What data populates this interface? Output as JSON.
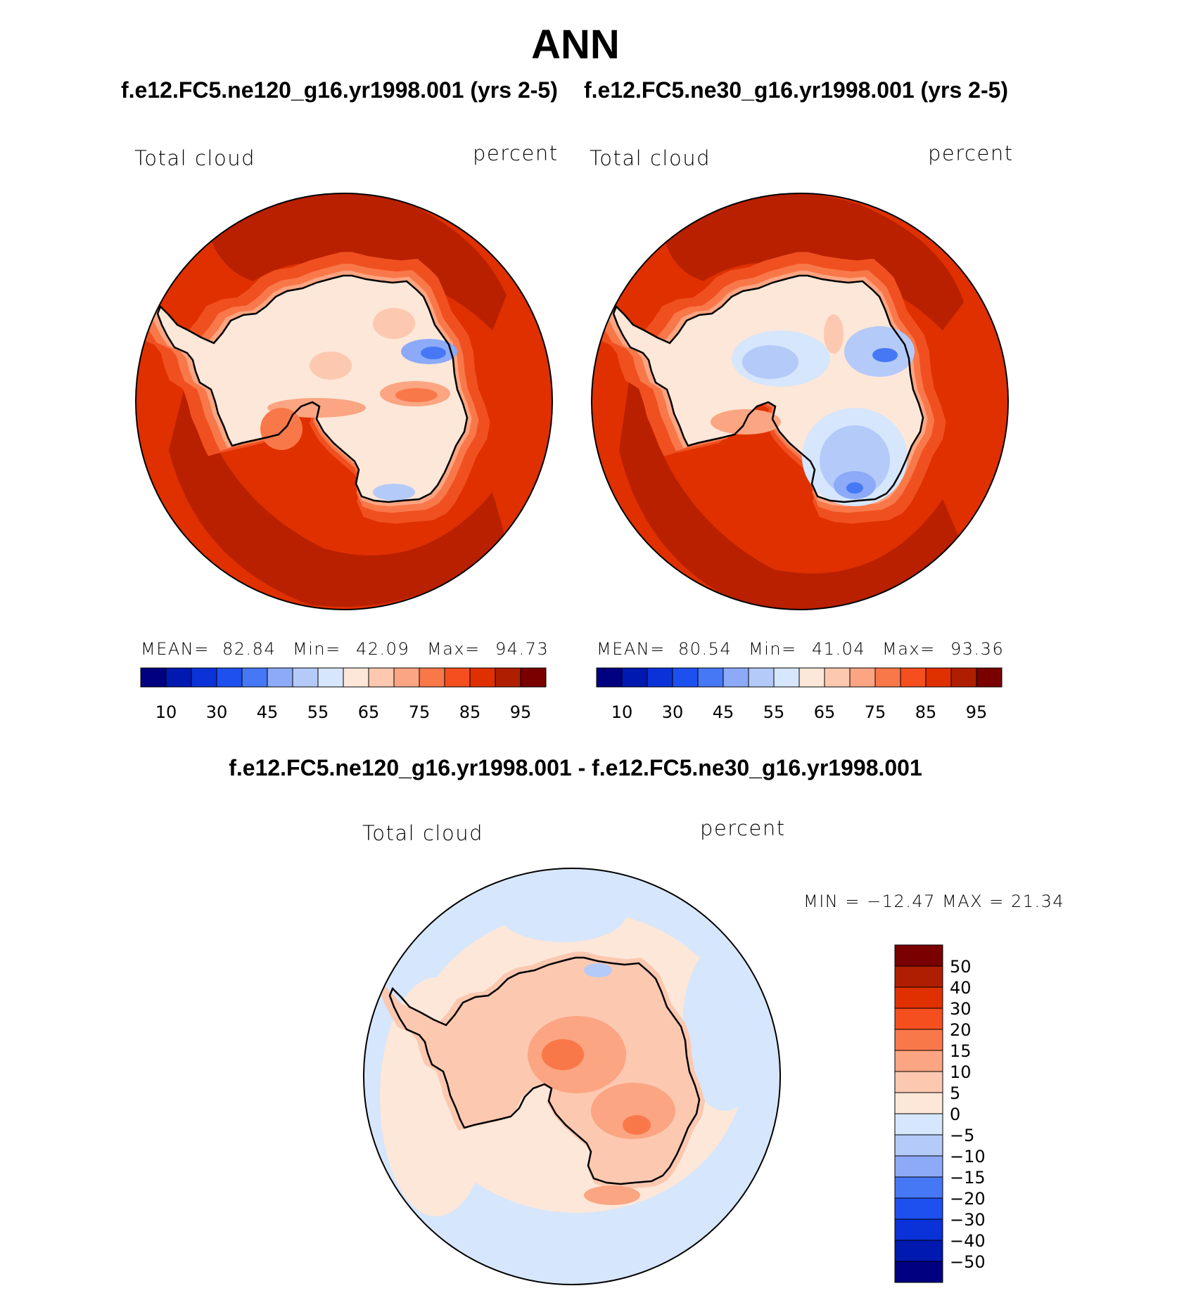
{
  "title": "ANN",
  "panels": {
    "left": {
      "case": "f.e12.FC5.ne120_g16.yr1998.001 (yrs 2-5)",
      "variable": "Total cloud",
      "units": "percent",
      "stats": {
        "mean_label": "MEAN=",
        "mean": "82.84",
        "min_label": "Min=",
        "min": "42.09",
        "max_label": "Max=",
        "max": "94.73"
      }
    },
    "right": {
      "case": "f.e12.FC5.ne30_g16.yr1998.001 (yrs 2-5)",
      "variable": "Total cloud",
      "units": "percent",
      "stats": {
        "mean_label": "MEAN=",
        "mean": "80.54",
        "min_label": "Min=",
        "min": "41.04",
        "max_label": "Max=",
        "max": "93.36"
      }
    },
    "diff": {
      "case": "f.e12.FC5.ne120_g16.yr1998.001 - f.e12.FC5.ne30_g16.yr1998.001",
      "variable": "Total cloud",
      "units": "percent",
      "min_max_text": "MIN = −12.47 MAX =   21.34"
    }
  },
  "colors": {
    "abs_scale": [
      "#000080",
      "#0019b0",
      "#0a32d8",
      "#1e50f0",
      "#4678f5",
      "#8caaf7",
      "#b4caf9",
      "#d6e6fc",
      "#fde7d8",
      "#fcc8b0",
      "#fba582",
      "#f9784a",
      "#f54e1f",
      "#e03000",
      "#b01e00",
      "#7a0000"
    ],
    "diff_scale": [
      "#000080",
      "#0019b0",
      "#0a32d8",
      "#1e50f0",
      "#4678f5",
      "#8caaf7",
      "#b4caf9",
      "#d6e6fc",
      "#fde7d8",
      "#fcc8b0",
      "#fba582",
      "#f9784a",
      "#f54e1f",
      "#e03000",
      "#b01e00",
      "#7a0000"
    ],
    "ocean_dark": "#b82000",
    "ocean_mid": "#e03000",
    "ocean_light": "#f05020"
  },
  "chart_data": [
    {
      "type": "heatmap",
      "title": "Total cloud",
      "units": "percent",
      "case": "f.e12.FC5.ne120_g16.yr1998.001 (yrs 2-5)",
      "projection": "south polar stereographic",
      "mean": 82.84,
      "min": 42.09,
      "max": 94.73,
      "colorbar_ticks": [
        "10",
        "30",
        "45",
        "55",
        "65",
        "75",
        "85",
        "95"
      ],
      "colorbar_levels": [
        5,
        10,
        20,
        30,
        40,
        45,
        50,
        55,
        60,
        65,
        70,
        75,
        80,
        85,
        90,
        95
      ]
    },
    {
      "type": "heatmap",
      "title": "Total cloud",
      "units": "percent",
      "case": "f.e12.FC5.ne30_g16.yr1998.001 (yrs 2-5)",
      "projection": "south polar stereographic",
      "mean": 80.54,
      "min": 41.04,
      "max": 93.36,
      "colorbar_ticks": [
        "10",
        "30",
        "45",
        "55",
        "65",
        "75",
        "85",
        "95"
      ],
      "colorbar_levels": [
        5,
        10,
        20,
        30,
        40,
        45,
        50,
        55,
        60,
        65,
        70,
        75,
        80,
        85,
        90,
        95
      ]
    },
    {
      "type": "heatmap",
      "title": "Total cloud",
      "units": "percent",
      "case": "f.e12.FC5.ne120_g16.yr1998.001 - f.e12.FC5.ne30_g16.yr1998.001",
      "projection": "south polar stereographic",
      "min": -12.47,
      "max": 21.34,
      "colorbar_ticks": [
        "50",
        "40",
        "30",
        "20",
        "15",
        "10",
        "5",
        "0",
        "−5",
        "−10",
        "−15",
        "−20",
        "−30",
        "−40",
        "−50"
      ]
    }
  ]
}
